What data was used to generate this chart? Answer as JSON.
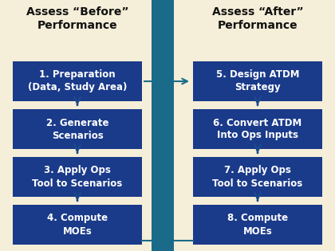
{
  "background_color": "#f5eed8",
  "divider_color": "#1a6b8a",
  "box_color": "#1a3a8a",
  "text_color": "#ffffff",
  "header_color": "#111111",
  "arrow_color": "#1a4a8a",
  "cross_color": "#1a6b8a",
  "left_header": "Assess “Before”\nPerformance",
  "right_header": "Assess “After”\nPerformance",
  "left_boxes": [
    "1. Preparation\n(Data, Study Area)",
    "2. Generate\nScenarios",
    "3. Apply Ops\nTool to Scenarios",
    "4. Compute\nMOEs"
  ],
  "right_boxes": [
    "5. Design ATDM\nStrategy",
    "6. Convert ATDM\nInto Ops Inputs",
    "7. Apply Ops\nTool to Scenarios",
    "8. Compute\nMOEs"
  ],
  "fig_width": 4.2,
  "fig_height": 3.15,
  "dpi": 100
}
